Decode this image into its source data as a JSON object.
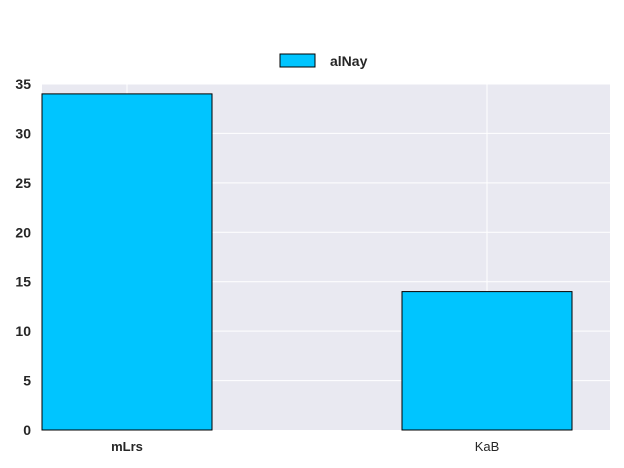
{
  "chart_data": {
    "type": "bar",
    "title": "",
    "xlabel": "",
    "ylabel": "",
    "categories": [
      "mLrs",
      "KaB"
    ],
    "series": [
      {
        "name": "alNay",
        "values": [
          34,
          14
        ],
        "color": "#00c5ff"
      }
    ],
    "ylim": [
      0,
      35
    ],
    "yticks": [
      0,
      5,
      10,
      15,
      20,
      25,
      30,
      35
    ],
    "grid": true,
    "legend_position": "top-center",
    "background_color": "#e9e9f1",
    "grid_color": "#ffffff",
    "bold_category": "mLrs"
  }
}
